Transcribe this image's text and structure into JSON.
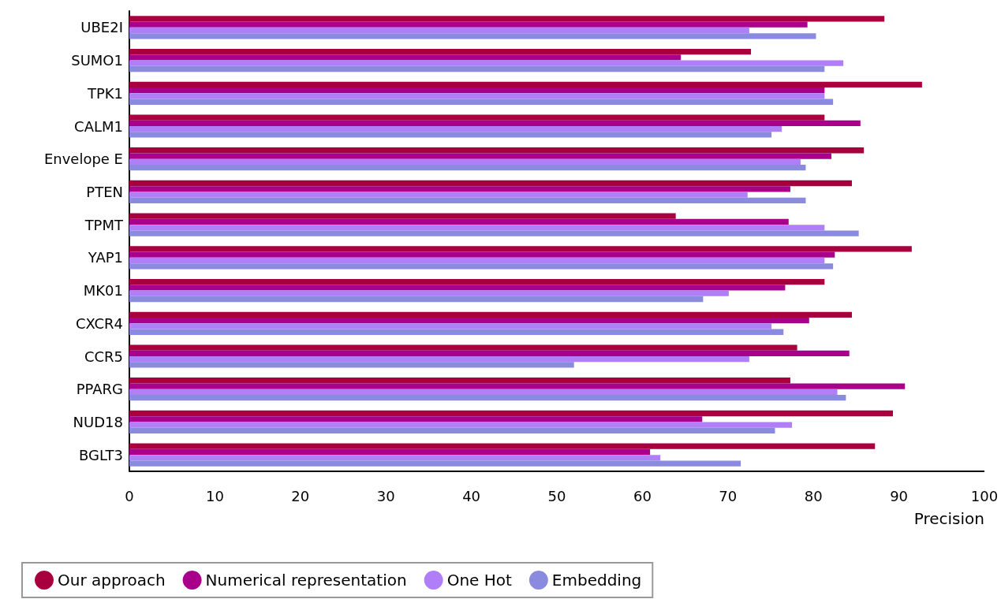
{
  "chart_data": {
    "type": "bar",
    "orientation": "horizontal",
    "xlabel": "Precision",
    "categories": [
      "UBE2I",
      "SUMO1",
      "TPK1",
      "CALM1",
      "Envelope E",
      "PTEN",
      "TPMT",
      "YAP1",
      "MK01",
      "CXCR4",
      "CCR5",
      "PPARG",
      "NUD18",
      "BGLT3"
    ],
    "series": [
      {
        "name": "Our approach",
        "color": "#a8003f",
        "values": [
          88.3,
          72.7,
          92.7,
          81.3,
          85.9,
          84.5,
          63.9,
          91.5,
          81.3,
          84.5,
          78.1,
          77.3,
          89.3,
          87.2
        ]
      },
      {
        "name": "Numerical representation",
        "color": "#a8008a",
        "values": [
          79.3,
          64.5,
          81.3,
          85.5,
          82.1,
          77.3,
          77.1,
          82.5,
          76.7,
          79.5,
          84.2,
          90.7,
          67.0,
          60.9
        ]
      },
      {
        "name": "One Hot",
        "color": "#b07ff8",
        "values": [
          72.5,
          83.5,
          81.3,
          76.3,
          78.5,
          72.3,
          81.3,
          81.3,
          70.1,
          75.1,
          72.5,
          82.8,
          77.5,
          62.1
        ]
      },
      {
        "name": "Embedding",
        "color": "#8a8ade",
        "values": [
          80.3,
          81.3,
          82.3,
          75.1,
          79.1,
          79.1,
          85.3,
          82.3,
          67.1,
          76.5,
          52.0,
          83.8,
          75.5,
          71.5
        ]
      }
    ],
    "xlim": [
      0,
      100
    ],
    "xticks": [
      0,
      10,
      20,
      30,
      40,
      50,
      60,
      70,
      80,
      90,
      100
    ],
    "grid": false,
    "legend": "bottom left"
  }
}
